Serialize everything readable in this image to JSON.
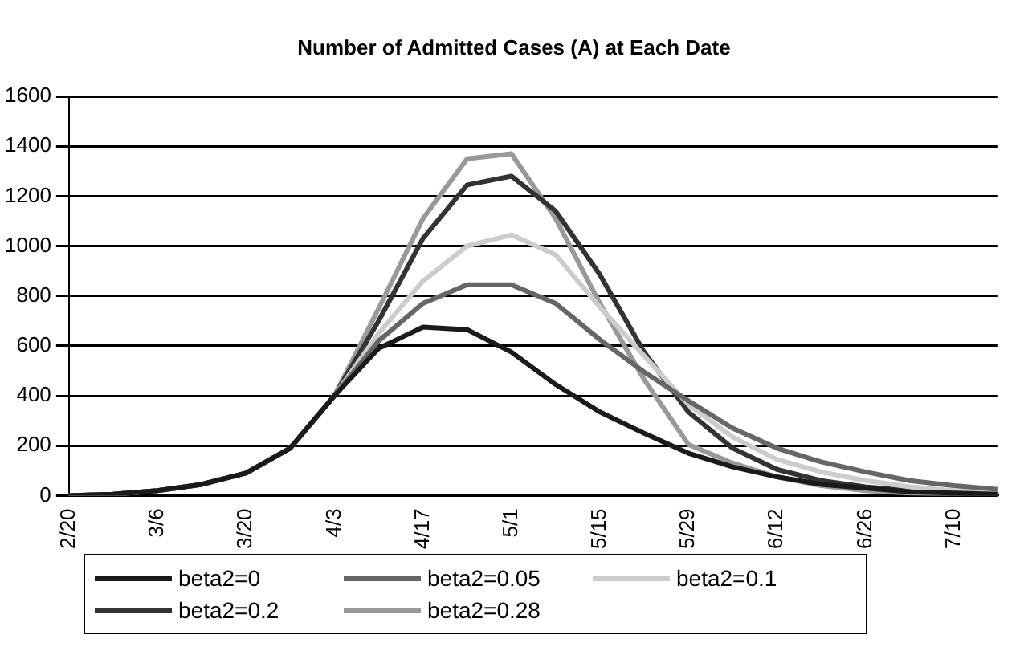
{
  "chart_data": {
    "type": "line",
    "title": "Number of Admitted Cases (A) at Each Date",
    "categories": [
      "2/20",
      null,
      "3/6",
      null,
      "3/20",
      null,
      "4/3",
      null,
      "4/17",
      null,
      "5/1",
      null,
      "5/15",
      null,
      "5/29",
      null,
      "6/12",
      null,
      "6/26",
      null,
      "7/10",
      null
    ],
    "series": [
      {
        "name": "beta2=0",
        "color": "#1a1a1a",
        "values": [
          0,
          5,
          20,
          45,
          90,
          190,
          400,
          590,
          675,
          665,
          575,
          445,
          335,
          250,
          170,
          115,
          75,
          45,
          30,
          15,
          10,
          5
        ]
      },
      {
        "name": "beta2=0.05",
        "color": "#666666",
        "values": [
          0,
          5,
          20,
          45,
          90,
          190,
          400,
          620,
          770,
          845,
          845,
          770,
          625,
          495,
          380,
          270,
          190,
          135,
          95,
          60,
          40,
          25
        ]
      },
      {
        "name": "beta2=0.1",
        "color": "#cccccc",
        "values": [
          0,
          5,
          20,
          45,
          90,
          190,
          400,
          650,
          860,
          1000,
          1045,
          965,
          755,
          560,
          365,
          235,
          145,
          95,
          60,
          35,
          20,
          12
        ]
      },
      {
        "name": "beta2=0.2",
        "color": "#333333",
        "values": [
          0,
          5,
          20,
          45,
          90,
          190,
          400,
          700,
          1030,
          1245,
          1280,
          1140,
          885,
          575,
          335,
          190,
          105,
          60,
          35,
          20,
          10,
          5
        ]
      },
      {
        "name": "beta2=0.28",
        "color": "#999999",
        "values": [
          0,
          5,
          20,
          45,
          90,
          190,
          400,
          750,
          1110,
          1350,
          1370,
          1110,
          770,
          465,
          205,
          130,
          75,
          40,
          20,
          10,
          5,
          3
        ]
      }
    ],
    "ylim": [
      0,
      1600
    ],
    "yticks": [
      0,
      200,
      400,
      600,
      800,
      1000,
      1200,
      1400,
      1600
    ],
    "grid": "y",
    "legend": "bottom",
    "marker": "none",
    "line_style": "solid"
  }
}
